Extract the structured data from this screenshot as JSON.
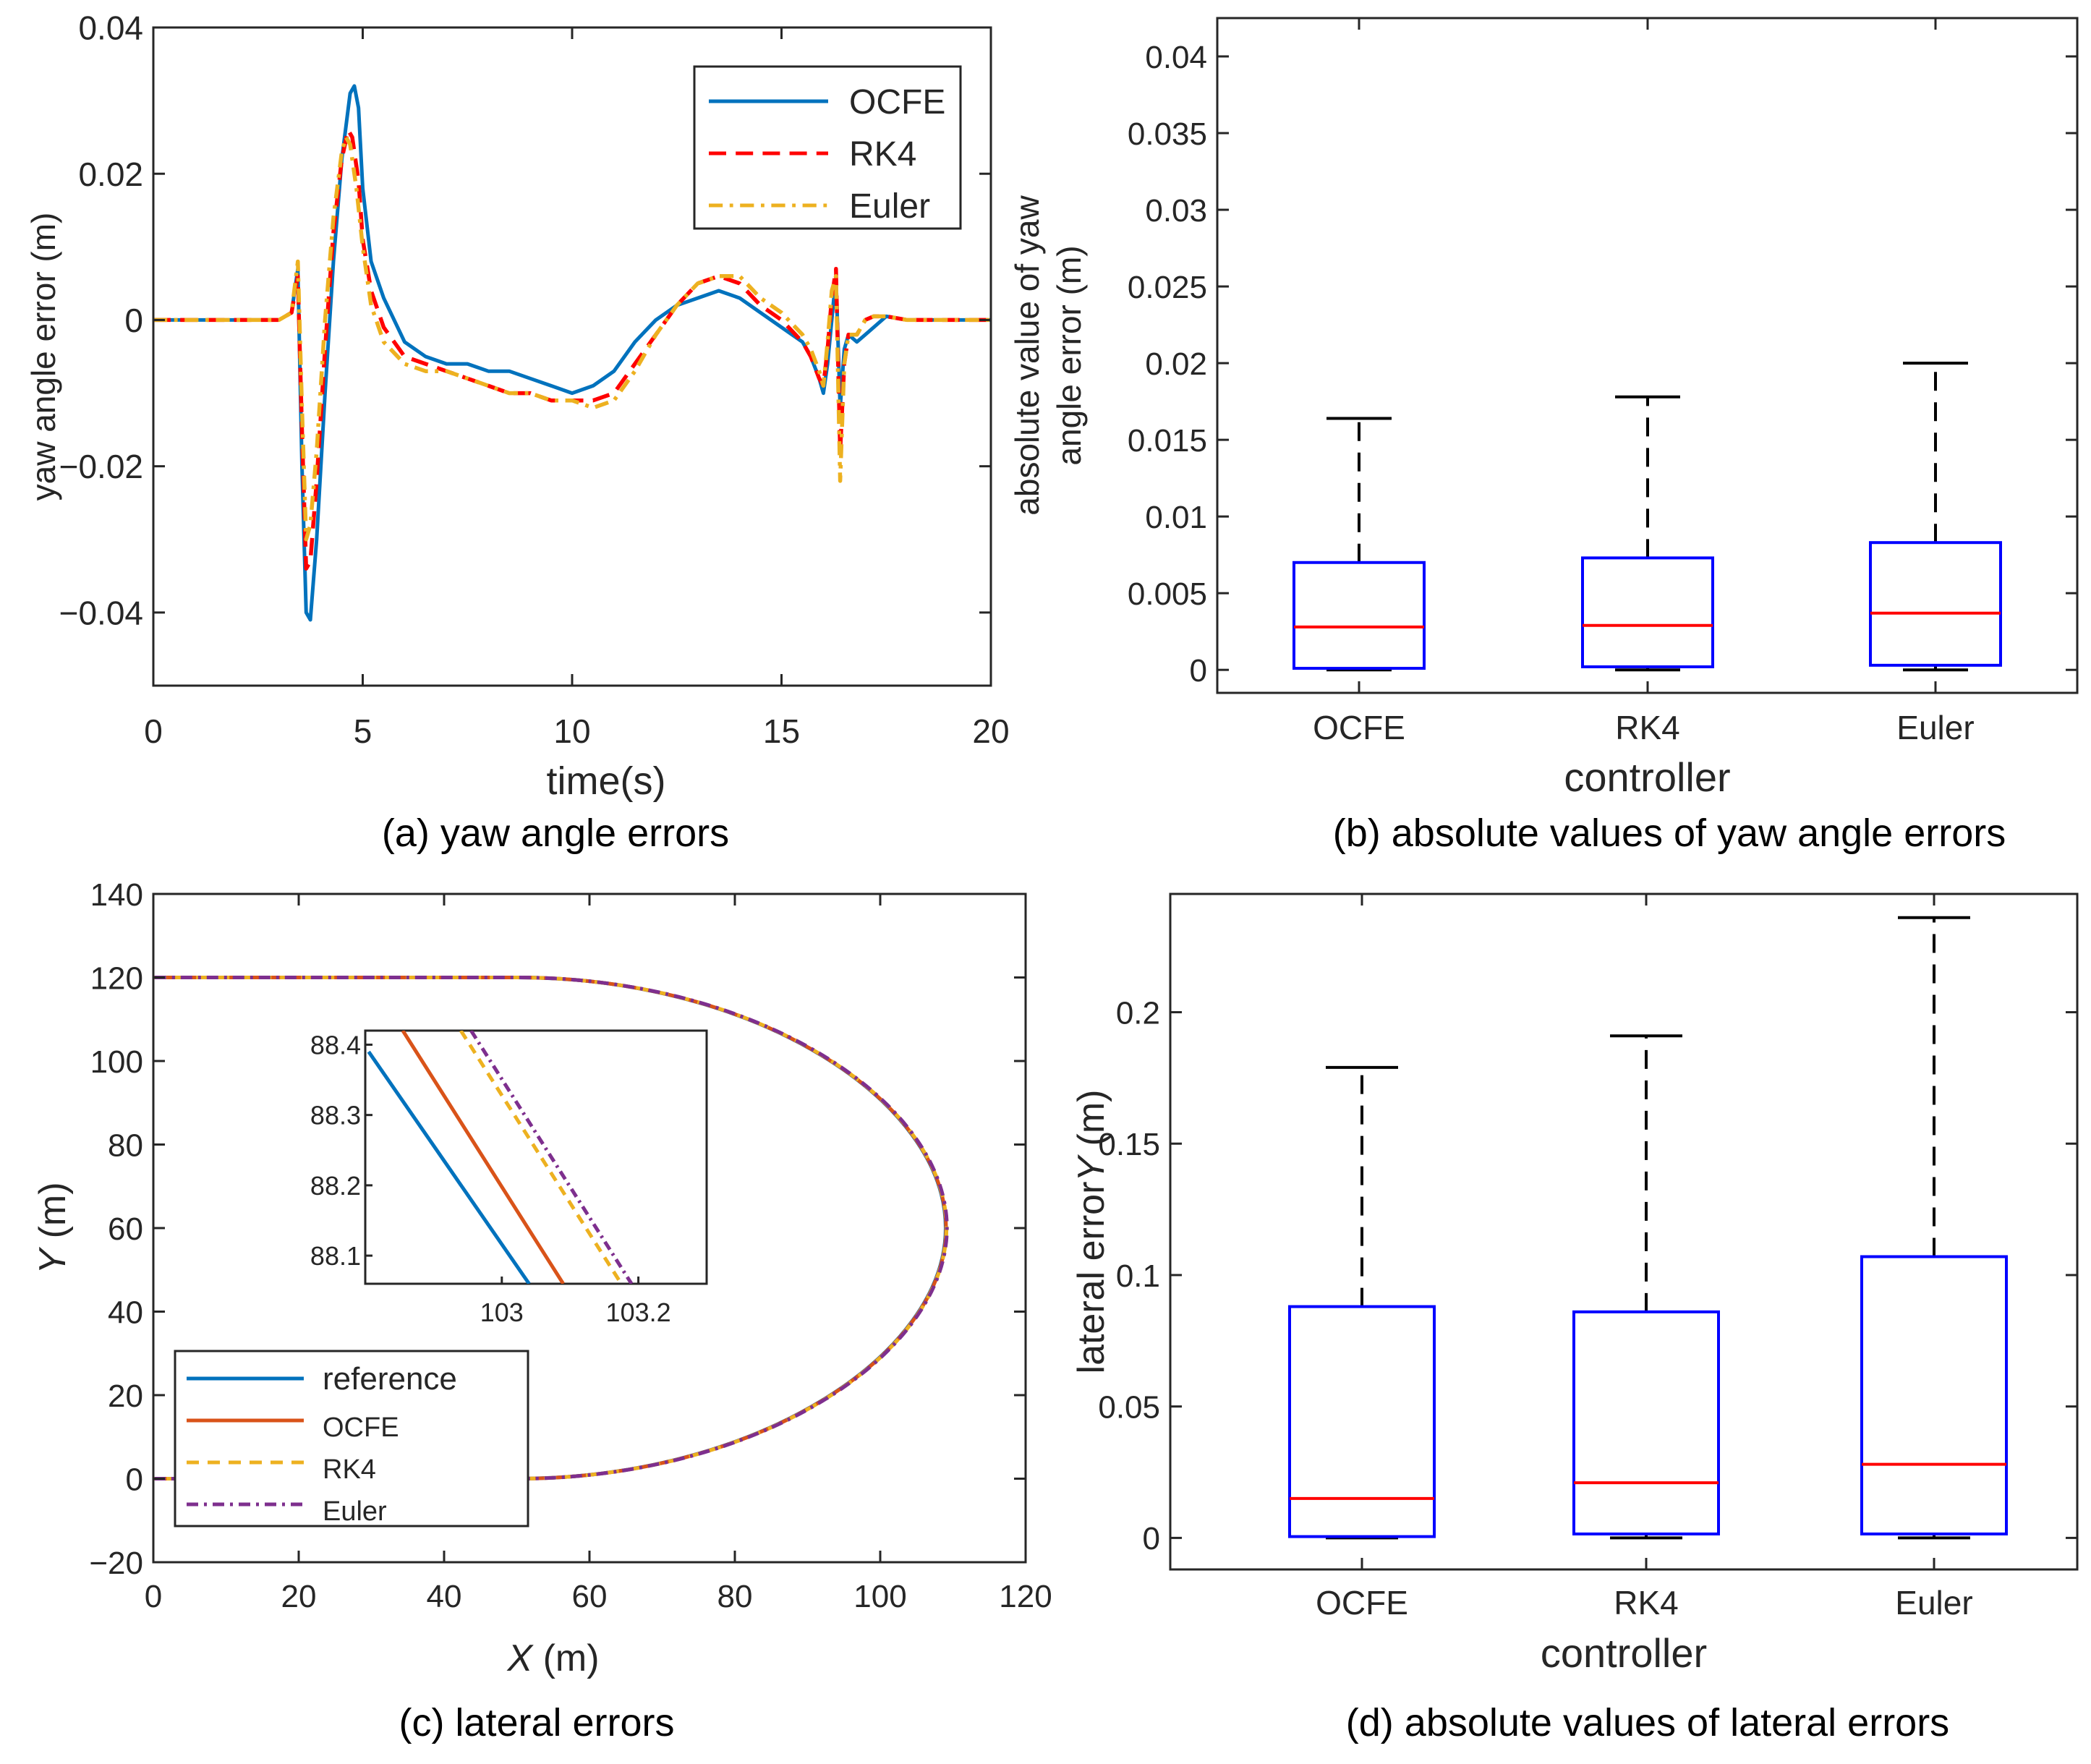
{
  "chart_data": [
    {
      "id": "a",
      "type": "line",
      "caption": "(a) yaw angle errors",
      "title": "",
      "xlabel": "time(s)",
      "ylabel": "yaw angle error (m)",
      "xlim": [
        0,
        20
      ],
      "ylim": [
        -0.05,
        0.04
      ],
      "xticks": [
        0,
        5,
        10,
        15,
        20
      ],
      "xtick_labels": [
        "0",
        "5",
        "10",
        "15",
        "20"
      ],
      "yticks": [
        -0.04,
        -0.02,
        0,
        0.02,
        0.04
      ],
      "ytick_labels": [
        "−0.04",
        "−0.02",
        "0",
        "0.02",
        "0.04"
      ],
      "grid": false,
      "legend": "top-right",
      "series": [
        {
          "name": "OCFE",
          "color": "#0072bd",
          "dash": "solid",
          "x": [
            0,
            3.0,
            3.3,
            3.45,
            3.55,
            3.65,
            3.75,
            3.9,
            4.1,
            4.3,
            4.5,
            4.7,
            4.8,
            4.9,
            5.0,
            5.2,
            5.5,
            6,
            6.5,
            7,
            7.5,
            8,
            8.5,
            9,
            9.5,
            10,
            10.5,
            11,
            11.5,
            12,
            12.5,
            13,
            13.5,
            14,
            14.5,
            15,
            15.5,
            15.7,
            15.9,
            16.0,
            16.1,
            16.2,
            16.3,
            16.4,
            16.5,
            16.6,
            16.8,
            17,
            17.2,
            17.5,
            18,
            19,
            20
          ],
          "y": [
            0,
            0,
            0.001,
            0.007,
            -0.02,
            -0.04,
            -0.041,
            -0.03,
            -0.01,
            0.008,
            0.022,
            0.031,
            0.032,
            0.029,
            0.018,
            0.008,
            0.003,
            -0.003,
            -0.005,
            -0.006,
            -0.006,
            -0.007,
            -0.007,
            -0.008,
            -0.009,
            -0.01,
            -0.009,
            -0.007,
            -0.003,
            0,
            0.002,
            0.003,
            0.004,
            0.003,
            0.001,
            -0.001,
            -0.003,
            -0.005,
            -0.008,
            -0.01,
            -0.006,
            0.0,
            0.006,
            -0.012,
            -0.004,
            -0.002,
            -0.003,
            -0.002,
            -0.001,
            0.0005,
            0,
            0,
            0
          ]
        },
        {
          "name": "RK4",
          "color": "#ff0000",
          "dash": "long-dash",
          "x": [
            0,
            3.0,
            3.3,
            3.45,
            3.55,
            3.65,
            3.75,
            3.9,
            4.1,
            4.3,
            4.5,
            4.65,
            4.75,
            4.9,
            5.0,
            5.2,
            5.5,
            6,
            6.5,
            7,
            7.5,
            8,
            8.5,
            9,
            9.5,
            10,
            10.5,
            11,
            11.5,
            12,
            12.5,
            13,
            13.5,
            14,
            14.5,
            15,
            15.5,
            15.7,
            15.9,
            16.0,
            16.1,
            16.2,
            16.3,
            16.4,
            16.5,
            16.6,
            16.8,
            17,
            17.2,
            17.5,
            18,
            19,
            20
          ],
          "y": [
            0,
            0,
            0.001,
            0.006,
            -0.015,
            -0.034,
            -0.033,
            -0.022,
            -0.004,
            0.012,
            0.022,
            0.026,
            0.025,
            0.019,
            0.011,
            0.004,
            -0.001,
            -0.005,
            -0.006,
            -0.007,
            -0.008,
            -0.009,
            -0.01,
            -0.01,
            -0.011,
            -0.011,
            -0.011,
            -0.01,
            -0.006,
            -0.002,
            0.002,
            0.005,
            0.006,
            0.005,
            0.002,
            0,
            -0.003,
            -0.005,
            -0.008,
            -0.009,
            -0.004,
            0.003,
            0.007,
            -0.018,
            -0.006,
            -0.002,
            -0.002,
            0.0,
            0.0005,
            0.0005,
            0,
            0,
            0
          ]
        },
        {
          "name": "Euler",
          "color": "#edb120",
          "dash": "dash-dot",
          "x": [
            0,
            3.0,
            3.3,
            3.45,
            3.55,
            3.65,
            3.75,
            3.9,
            4.1,
            4.3,
            4.5,
            4.6,
            4.7,
            4.85,
            5.0,
            5.2,
            5.5,
            6,
            6.5,
            7,
            7.5,
            8,
            8.5,
            9,
            9.5,
            10,
            10.5,
            11,
            11.5,
            12,
            12.5,
            13,
            13.5,
            14,
            14.5,
            15,
            15.5,
            15.7,
            15.9,
            16.0,
            16.1,
            16.2,
            16.3,
            16.4,
            16.5,
            16.6,
            16.8,
            17,
            17.2,
            17.5,
            18,
            19,
            20
          ],
          "y": [
            0,
            0,
            0.001,
            0.008,
            -0.012,
            -0.03,
            -0.028,
            -0.018,
            0.0,
            0.014,
            0.023,
            0.025,
            0.024,
            0.018,
            0.01,
            0.002,
            -0.003,
            -0.006,
            -0.007,
            -0.007,
            -0.008,
            -0.009,
            -0.01,
            -0.01,
            -0.011,
            -0.011,
            -0.012,
            -0.011,
            -0.007,
            -0.002,
            0.002,
            0.005,
            0.006,
            0.006,
            0.003,
            0.001,
            -0.002,
            -0.004,
            -0.007,
            -0.009,
            -0.003,
            0.004,
            0.006,
            -0.022,
            -0.006,
            -0.002,
            -0.002,
            0.0,
            0.0005,
            0.0005,
            0,
            0,
            0
          ]
        }
      ]
    },
    {
      "id": "b",
      "type": "box",
      "caption": "(b) absolute values of yaw angle errors",
      "title": "",
      "xlabel": "controller",
      "ylabel": [
        "absolute value of yaw",
        "angle error (m)"
      ],
      "ylim": [
        -0.0015,
        0.0425
      ],
      "yticks": [
        0,
        0.005,
        0.01,
        0.015,
        0.02,
        0.025,
        0.03,
        0.035,
        0.04
      ],
      "ytick_labels": [
        "0",
        "0.005",
        "0.01",
        "0.015",
        "0.02",
        "0.025",
        "0.03",
        "0.035",
        "0.04"
      ],
      "categories": [
        "OCFE",
        "RK4",
        "Euler"
      ],
      "box_color": "#0000ff",
      "median_color": "#ff0000",
      "boxes": [
        {
          "min": 0,
          "q1": 0.0001,
          "median": 0.0028,
          "q3": 0.007,
          "max": 0.0164
        },
        {
          "min": 0,
          "q1": 0.0002,
          "median": 0.0029,
          "q3": 0.0073,
          "max": 0.0178
        },
        {
          "min": 0,
          "q1": 0.0003,
          "median": 0.0037,
          "q3": 0.0083,
          "max": 0.02
        }
      ]
    },
    {
      "id": "c",
      "type": "line",
      "caption": "(c) lateral errors",
      "title": "",
      "xlabel_italic": "X",
      "xlabel": " (m)",
      "ylabel_italic": "Y",
      "ylabel": " (m)",
      "xlim": [
        0,
        120
      ],
      "ylim": [
        -20,
        140
      ],
      "xticks": [
        0,
        20,
        40,
        60,
        80,
        100,
        120
      ],
      "xtick_labels": [
        "0",
        "20",
        "40",
        "60",
        "80",
        "100",
        "120"
      ],
      "yticks": [
        -20,
        0,
        20,
        40,
        60,
        80,
        100,
        120,
        140
      ],
      "ytick_labels": [
        "−20",
        "0",
        "20",
        "40",
        "60",
        "80",
        "100",
        "120",
        "140"
      ],
      "grid": false,
      "legend": "bottom-left",
      "path": {
        "straight_top": {
          "from_x": 0,
          "to_x": 50,
          "y": 120
        },
        "straight_bottom": {
          "from_x": 0,
          "to_x": 50,
          "y": 0
        },
        "curve_apex": {
          "x": 109,
          "y": 60
        }
      },
      "series": [
        {
          "name": "reference",
          "color": "#0072bd",
          "dash": "solid"
        },
        {
          "name": "OCFE",
          "color": "#d95319",
          "dash": "solid"
        },
        {
          "name": "RK4",
          "color": "#edb120",
          "dash": "dash"
        },
        {
          "name": "Euler",
          "color": "#7e2f8e",
          "dash": "dash-dot"
        }
      ],
      "inset": {
        "xlim": [
          102.8,
          103.3
        ],
        "ylim": [
          88.06,
          88.42
        ],
        "xticks": [
          103,
          103.2
        ],
        "xtick_labels": [
          "103",
          "103.2"
        ],
        "yticks": [
          88.1,
          88.2,
          88.3,
          88.4
        ],
        "ytick_labels": [
          "88.1",
          "88.2",
          "88.3",
          "88.4"
        ],
        "lines": [
          {
            "name": "reference",
            "x": [
              102.805,
              103.04
            ],
            "y": [
              88.39,
              88.06
            ]
          },
          {
            "name": "OCFE",
            "x": [
              102.855,
              103.09
            ],
            "y": [
              88.42,
              88.06
            ]
          },
          {
            "name": "RK4",
            "x": [
              102.94,
              103.175
            ],
            "y": [
              88.42,
              88.06
            ]
          },
          {
            "name": "Euler",
            "x": [
              102.955,
              103.19
            ],
            "y": [
              88.42,
              88.06
            ]
          }
        ]
      }
    },
    {
      "id": "d",
      "type": "box",
      "caption": "(d) absolute values of lateral errors",
      "title": "",
      "xlabel": "controller",
      "ylabel_plain": "lateral error",
      "ylabel_italic": "Y",
      "ylabel_unit": " (m)",
      "ylim": [
        -0.012,
        0.245
      ],
      "yticks": [
        0,
        0.05,
        0.1,
        0.15,
        0.2
      ],
      "ytick_labels": [
        "0",
        "0.05",
        "0.1",
        "0.15",
        "0.2"
      ],
      "categories": [
        "OCFE",
        "RK4",
        "Euler"
      ],
      "box_color": "#0000ff",
      "median_color": "#ff0000",
      "boxes": [
        {
          "min": 0,
          "q1": 0.0005,
          "median": 0.015,
          "q3": 0.088,
          "max": 0.179
        },
        {
          "min": 0,
          "q1": 0.0015,
          "median": 0.021,
          "q3": 0.086,
          "max": 0.191
        },
        {
          "min": 0,
          "q1": 0.0015,
          "median": 0.028,
          "q3": 0.107,
          "max": 0.236
        }
      ]
    }
  ]
}
